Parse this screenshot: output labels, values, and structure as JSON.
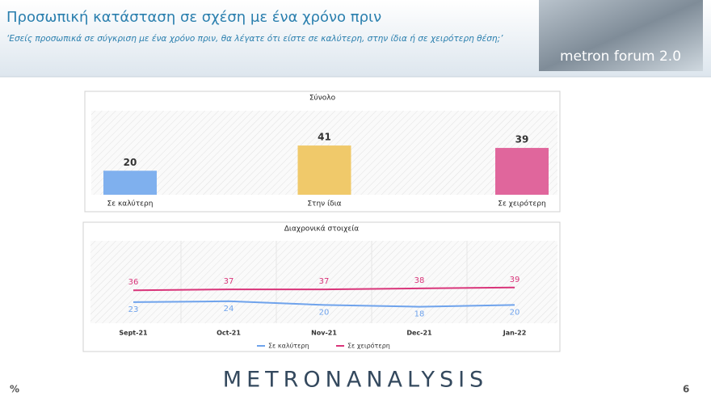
{
  "header": {
    "title": "Προσωπική κατάσταση σε σχέση με ένα χρόνο πριν",
    "subtitle": "‘Εσείς προσωπικά σε σύγκριση με ένα χρόνο πριν, θα λέγατε ότι είστε σε καλύτερη, στην ίδια ή σε χειρότερη θέση;’",
    "logo": "metron forum 2.0"
  },
  "chart_data": [
    {
      "type": "bar",
      "title": "Σύνολο",
      "categories": [
        "Σε καλύτερη",
        "Στην ίδια",
        "Σε χειρότερη"
      ],
      "values": [
        20,
        41,
        39
      ],
      "colors": [
        "#7fb0ee",
        "#f0c96a",
        "#e0669c"
      ],
      "ylim": [
        0,
        70
      ]
    },
    {
      "type": "line",
      "title": "Διαχρονικά στοιχεία",
      "categories": [
        "Sept-21",
        "Oct-21",
        "Nov-21",
        "Dec-21",
        "Jan-22"
      ],
      "series": [
        {
          "name": "Σε καλύτερη",
          "color": "#6fa3ec",
          "values": [
            23,
            24,
            20,
            18,
            20
          ]
        },
        {
          "name": "Σε χειρότερη",
          "color": "#d9357a",
          "values": [
            36,
            37,
            37,
            38,
            39
          ]
        }
      ],
      "ylim": [
        0,
        90
      ]
    }
  ],
  "footer": {
    "brand": "METRONANALYSIS",
    "unit": "%",
    "page": 6
  }
}
